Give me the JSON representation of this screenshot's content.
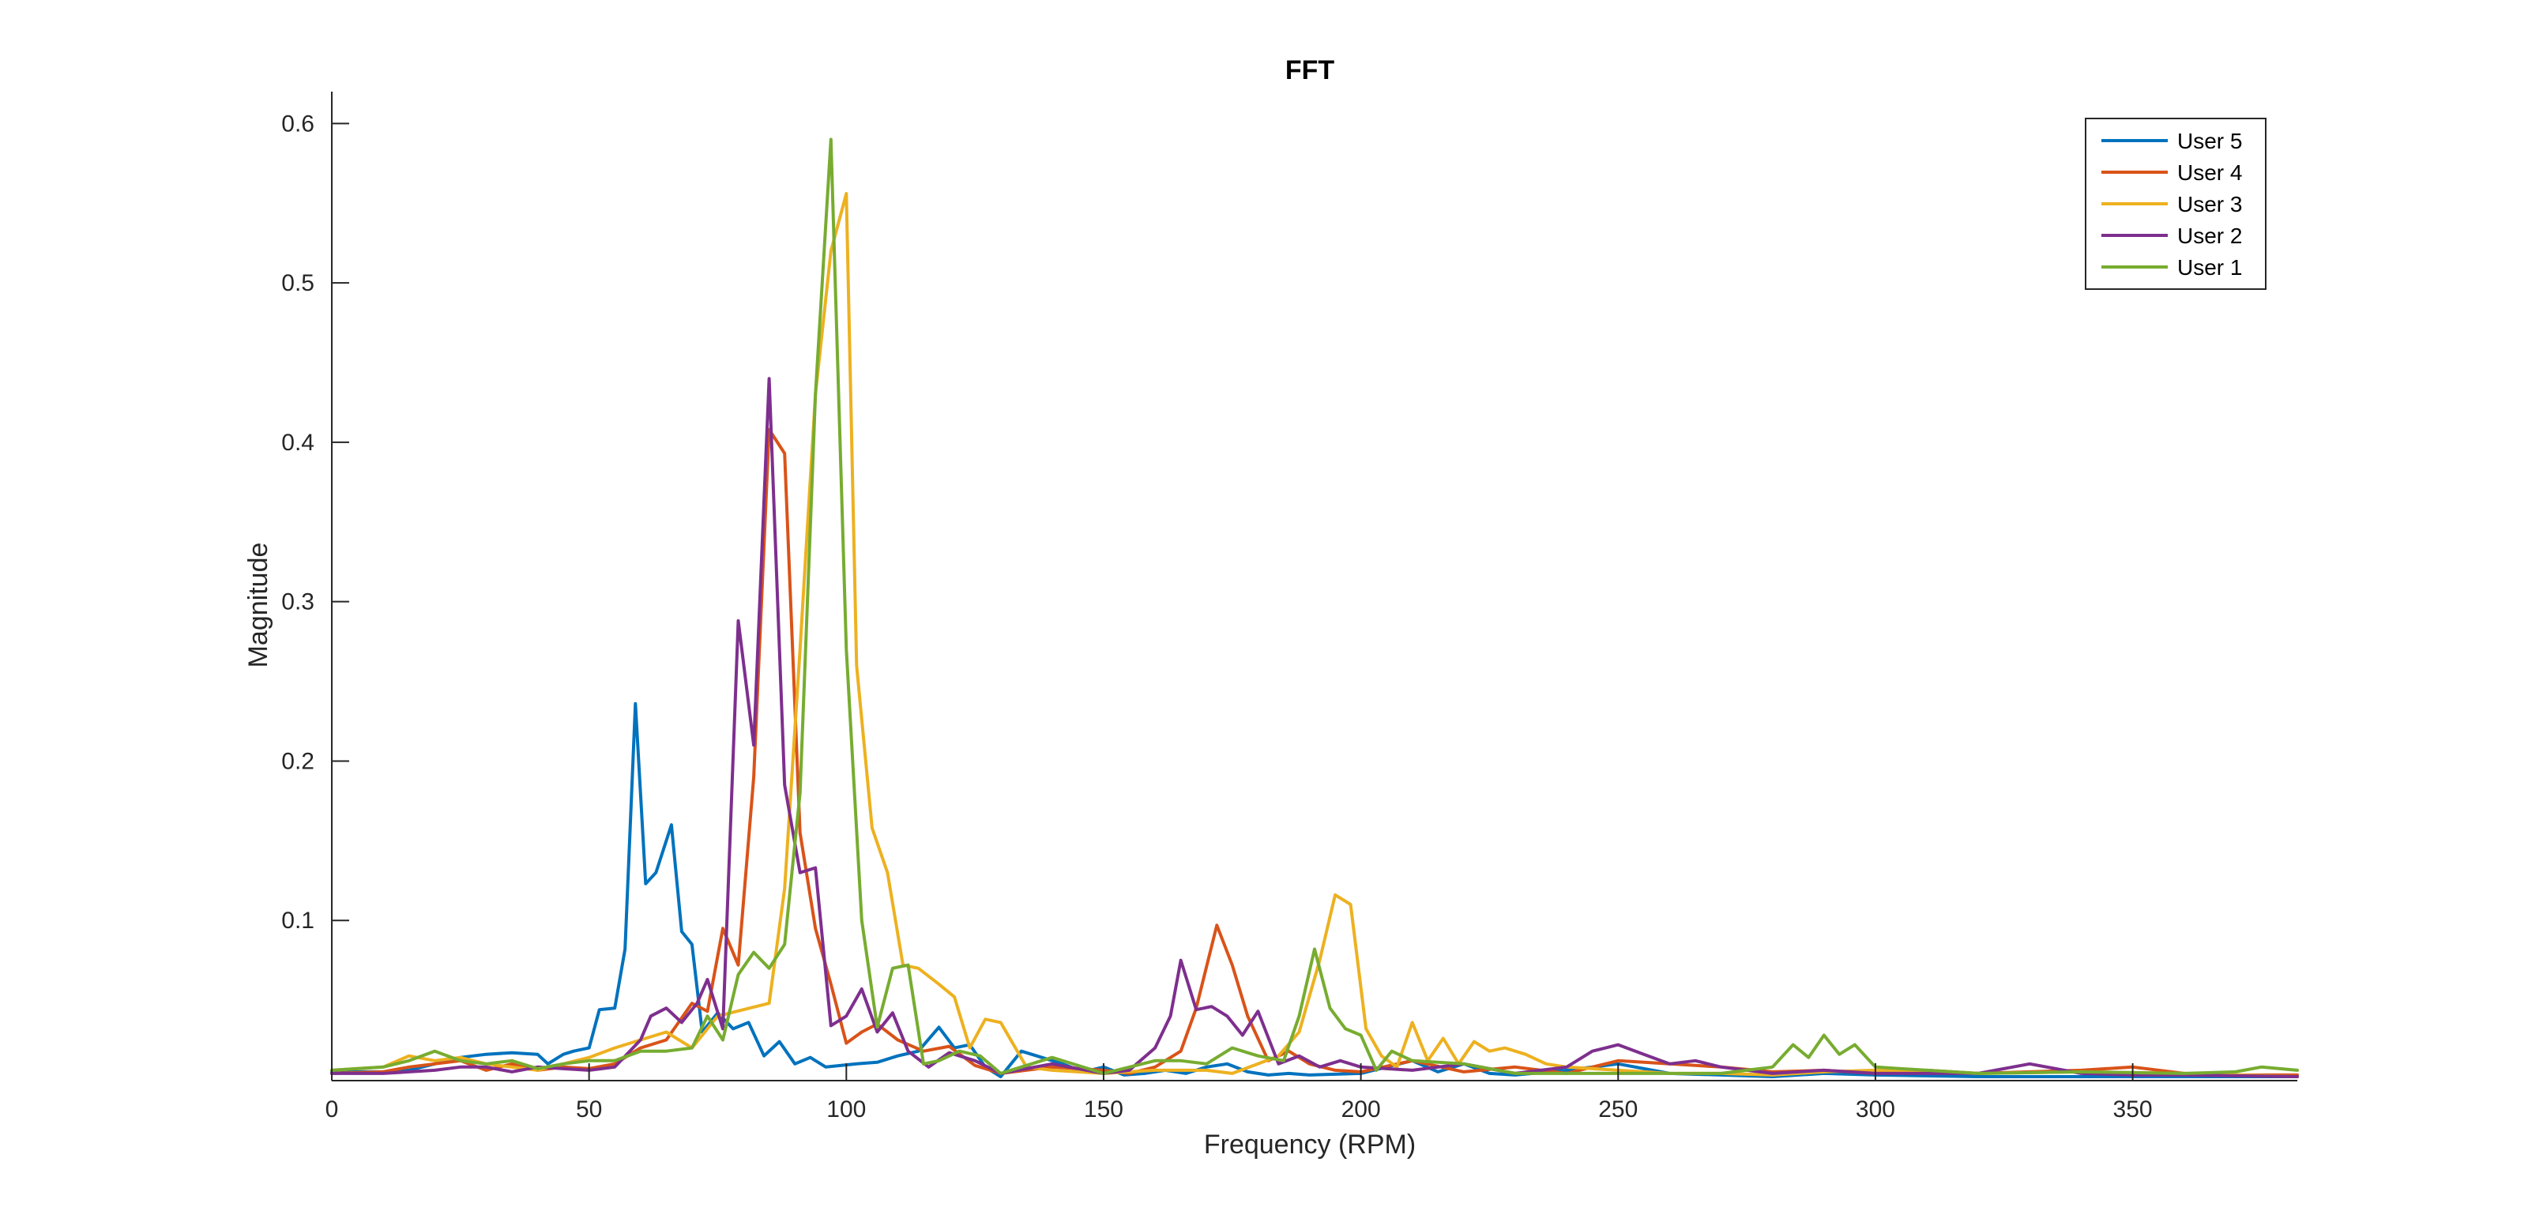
{
  "chart_data": {
    "type": "line",
    "title": "FFT",
    "xlabel": "Frequency (RPM)",
    "ylabel": "Magnitude",
    "xlim": [
      0,
      382
    ],
    "ylim": [
      -0.0005,
      0.62
    ],
    "xticks": [
      0,
      50,
      100,
      150,
      200,
      250,
      300,
      350
    ],
    "yticks": [
      0.1,
      0.2,
      0.3,
      0.4,
      0.5,
      0.6
    ],
    "xtick_labels": [
      "0",
      "50",
      "100",
      "150",
      "200",
      "250",
      "300",
      "350"
    ],
    "ytick_labels": [
      "0.1",
      "0.2",
      "0.3",
      "0.4",
      "0.5",
      "0.6"
    ],
    "grid": false,
    "legend_position": "top-right",
    "series": [
      {
        "name": "User 5",
        "color": "#0072BD",
        "x": [
          0,
          10,
          15,
          20,
          25,
          30,
          35,
          40,
          42,
          45,
          47,
          50,
          52,
          55,
          57,
          59,
          61,
          63,
          66,
          68,
          70,
          72,
          75,
          78,
          81,
          84,
          87,
          90,
          93,
          96,
          99,
          102,
          106,
          110,
          114,
          118,
          121,
          124,
          127,
          130,
          134,
          138,
          142,
          146,
          150,
          154,
          158,
          162,
          166,
          170,
          174,
          178,
          182,
          186,
          190,
          200,
          210,
          215,
          220,
          225,
          230,
          240,
          250,
          260,
          270,
          280,
          290,
          300,
          320,
          340,
          360,
          382
        ],
        "y": [
          0.005,
          0.005,
          0.006,
          0.01,
          0.014,
          0.016,
          0.017,
          0.016,
          0.01,
          0.016,
          0.018,
          0.02,
          0.044,
          0.045,
          0.082,
          0.236,
          0.123,
          0.13,
          0.16,
          0.093,
          0.085,
          0.03,
          0.042,
          0.032,
          0.036,
          0.015,
          0.024,
          0.01,
          0.014,
          0.008,
          0.009,
          0.01,
          0.011,
          0.015,
          0.018,
          0.033,
          0.02,
          0.022,
          0.008,
          0.002,
          0.018,
          0.014,
          0.01,
          0.005,
          0.008,
          0.003,
          0.004,
          0.006,
          0.004,
          0.008,
          0.01,
          0.005,
          0.003,
          0.004,
          0.003,
          0.004,
          0.012,
          0.005,
          0.01,
          0.004,
          0.003,
          0.006,
          0.01,
          0.004,
          0.003,
          0.002,
          0.004,
          0.003,
          0.002,
          0.002,
          0.002,
          0.002
        ]
      },
      {
        "name": "User 4",
        "color": "#D95319",
        "x": [
          0,
          10,
          15,
          20,
          25,
          30,
          35,
          40,
          45,
          50,
          55,
          60,
          65,
          70,
          73,
          76,
          79,
          82,
          85,
          88,
          91,
          94,
          97,
          100,
          103,
          106,
          110,
          115,
          120,
          125,
          130,
          140,
          150,
          155,
          160,
          165,
          168,
          172,
          175,
          178,
          182,
          186,
          190,
          195,
          200,
          210,
          220,
          230,
          240,
          250,
          260,
          270,
          280,
          290,
          300,
          310,
          320,
          330,
          340,
          350,
          360,
          370,
          382
        ],
        "y": [
          0.004,
          0.005,
          0.008,
          0.01,
          0.012,
          0.006,
          0.01,
          0.006,
          0.008,
          0.007,
          0.01,
          0.02,
          0.025,
          0.048,
          0.043,
          0.095,
          0.072,
          0.19,
          0.408,
          0.393,
          0.155,
          0.095,
          0.06,
          0.023,
          0.03,
          0.035,
          0.025,
          0.018,
          0.021,
          0.009,
          0.004,
          0.008,
          0.006,
          0.004,
          0.008,
          0.018,
          0.045,
          0.097,
          0.072,
          0.04,
          0.012,
          0.018,
          0.01,
          0.006,
          0.005,
          0.012,
          0.005,
          0.008,
          0.004,
          0.012,
          0.01,
          0.008,
          0.005,
          0.006,
          0.004,
          0.006,
          0.004,
          0.005,
          0.006,
          0.008,
          0.004,
          0.003,
          0.003
        ]
      },
      {
        "name": "User 3",
        "color": "#EDB120",
        "x": [
          0,
          10,
          15,
          20,
          25,
          30,
          35,
          40,
          45,
          50,
          55,
          60,
          65,
          70,
          75,
          80,
          85,
          88,
          91,
          94,
          97,
          100,
          102,
          105,
          108,
          111,
          114,
          118,
          121,
          124,
          127,
          130,
          135,
          140,
          150,
          160,
          170,
          175,
          180,
          184,
          188,
          192,
          195,
          198,
          201,
          204,
          207,
          210,
          213,
          216,
          219,
          222,
          225,
          228,
          232,
          236,
          240,
          250,
          260,
          270,
          280,
          290,
          300,
          320,
          340,
          360,
          382
        ],
        "y": [
          0.006,
          0.008,
          0.015,
          0.012,
          0.014,
          0.01,
          0.008,
          0.006,
          0.01,
          0.014,
          0.02,
          0.025,
          0.03,
          0.02,
          0.04,
          0.044,
          0.048,
          0.12,
          0.27,
          0.43,
          0.52,
          0.556,
          0.26,
          0.158,
          0.13,
          0.072,
          0.07,
          0.06,
          0.052,
          0.02,
          0.038,
          0.036,
          0.008,
          0.006,
          0.004,
          0.006,
          0.006,
          0.004,
          0.01,
          0.015,
          0.03,
          0.075,
          0.116,
          0.11,
          0.032,
          0.015,
          0.008,
          0.036,
          0.012,
          0.026,
          0.01,
          0.024,
          0.018,
          0.02,
          0.016,
          0.01,
          0.008,
          0.006,
          0.004,
          0.004,
          0.003,
          0.005,
          0.006,
          0.004,
          0.005,
          0.004,
          0.002
        ]
      },
      {
        "name": "User 2",
        "color": "#7E2F8E",
        "x": [
          0,
          10,
          15,
          20,
          25,
          30,
          35,
          40,
          45,
          50,
          55,
          60,
          62,
          65,
          68,
          71,
          73,
          76,
          79,
          82,
          85,
          88,
          91,
          94,
          97,
          100,
          103,
          106,
          109,
          112,
          116,
          120,
          125,
          130,
          140,
          150,
          155,
          160,
          163,
          165,
          168,
          171,
          174,
          177,
          180,
          184,
          188,
          192,
          196,
          200,
          210,
          220,
          230,
          240,
          245,
          250,
          255,
          260,
          265,
          270,
          280,
          290,
          300,
          320,
          330,
          340,
          350,
          360,
          382
        ],
        "y": [
          0.004,
          0.004,
          0.005,
          0.006,
          0.008,
          0.008,
          0.005,
          0.008,
          0.007,
          0.006,
          0.008,
          0.025,
          0.04,
          0.045,
          0.036,
          0.048,
          0.063,
          0.032,
          0.288,
          0.21,
          0.44,
          0.185,
          0.13,
          0.133,
          0.034,
          0.04,
          0.057,
          0.03,
          0.042,
          0.018,
          0.008,
          0.017,
          0.012,
          0.004,
          0.01,
          0.004,
          0.006,
          0.02,
          0.04,
          0.075,
          0.044,
          0.046,
          0.04,
          0.028,
          0.043,
          0.01,
          0.015,
          0.008,
          0.012,
          0.008,
          0.006,
          0.01,
          0.004,
          0.008,
          0.018,
          0.022,
          0.016,
          0.01,
          0.012,
          0.008,
          0.004,
          0.006,
          0.004,
          0.004,
          0.01,
          0.004,
          0.003,
          0.003,
          0.002
        ]
      },
      {
        "name": "User 1",
        "color": "#77AC30",
        "x": [
          0,
          10,
          15,
          20,
          25,
          30,
          35,
          40,
          45,
          50,
          55,
          60,
          65,
          70,
          73,
          76,
          79,
          82,
          85,
          88,
          91,
          94,
          97,
          100,
          103,
          106,
          109,
          112,
          115,
          118,
          122,
          126,
          130,
          140,
          150,
          160,
          165,
          170,
          175,
          180,
          185,
          188,
          191,
          194,
          197,
          200,
          203,
          206,
          210,
          220,
          230,
          240,
          250,
          260,
          270,
          280,
          284,
          287,
          290,
          293,
          296,
          300,
          310,
          320,
          340,
          360,
          370,
          375,
          382
        ],
        "y": [
          0.006,
          0.008,
          0.012,
          0.018,
          0.012,
          0.01,
          0.012,
          0.007,
          0.01,
          0.012,
          0.012,
          0.018,
          0.018,
          0.02,
          0.04,
          0.025,
          0.066,
          0.08,
          0.07,
          0.085,
          0.18,
          0.43,
          0.59,
          0.27,
          0.1,
          0.033,
          0.07,
          0.072,
          0.01,
          0.012,
          0.018,
          0.015,
          0.004,
          0.014,
          0.004,
          0.012,
          0.012,
          0.01,
          0.02,
          0.015,
          0.012,
          0.04,
          0.082,
          0.045,
          0.032,
          0.028,
          0.006,
          0.018,
          0.012,
          0.01,
          0.004,
          0.004,
          0.004,
          0.004,
          0.004,
          0.008,
          0.022,
          0.014,
          0.028,
          0.016,
          0.022,
          0.008,
          0.006,
          0.004,
          0.005,
          0.004,
          0.005,
          0.008,
          0.006
        ]
      }
    ]
  }
}
